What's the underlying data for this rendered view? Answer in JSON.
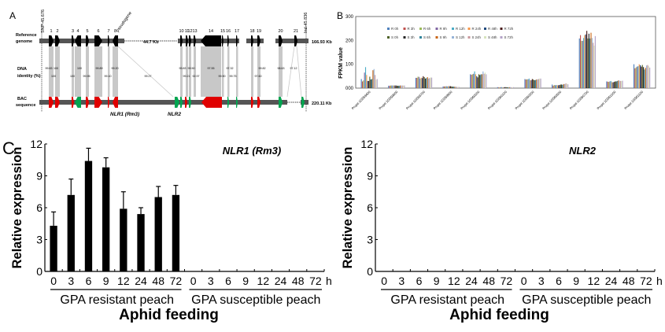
{
  "panel_a": {
    "label": "A",
    "reference_label": [
      "Reference",
      "genome"
    ],
    "identity_label": [
      "DNA",
      "identity (%)"
    ],
    "bac_label": [
      "BAC",
      "sequence"
    ],
    "left_marker": "SNP-45.676",
    "right_marker": "Ind-45.836",
    "pseudogene_label": "pseudogene",
    "gap_label": "44.7 Kb",
    "ref_length": "166.93 Kb",
    "bac_length": "220.11 Kb",
    "nlr1_label": "NLR1 (Rm3)",
    "nlr2_label": "NLR2",
    "gene_numbers": [
      "1",
      "2",
      "3",
      "4",
      "5",
      "6",
      "7",
      "8",
      "10",
      "11",
      "12",
      "13",
      "14",
      "15",
      "16",
      "17",
      "18",
      "19",
      "20",
      "21"
    ],
    "identity_top": [
      "99.83",
      "100",
      "100",
      "99.89",
      "99.20",
      "99.83",
      "99.50",
      "97.55",
      "97.32",
      "99.82",
      "98.63",
      "97.12"
    ],
    "identity_bottom": [
      "100",
      "100",
      "99.95",
      "99.10",
      "99.27",
      "99.21",
      "92.97",
      "99.90",
      "99.75",
      "97.60"
    ],
    "colors": {
      "match": "#e00000",
      "inverse": "#00a550",
      "ref": "#000000",
      "backbone": "#555555",
      "link": "#c8c8c8"
    }
  },
  "chart_data": [
    {
      "id": "B",
      "type": "bar",
      "title": "",
      "panel_label": "B",
      "ylabel": "FPKM value",
      "xlabel": "",
      "ylim": [
        0,
        300
      ],
      "yticks": [
        "000",
        "100",
        "200",
        "300"
      ],
      "legend_position": "top-left",
      "grid": false,
      "categories": [
        "Prupe.1G559400",
        "Prupe.1G559600",
        "Prupe.1G559700",
        "Prupe.1G559900",
        "Prupe.1G560000",
        "Prupe.1G560100",
        "Prupe.1G560300",
        "Prupe.1G560600",
        "Prupe.1G560700",
        "Prupe.1G561000",
        "Prupe.1G561100"
      ],
      "series": [
        {
          "name": "R 0h",
          "color": "#4f81bd",
          "values": [
            38,
            10,
            43,
            7,
            58,
            4,
            38,
            15,
            208,
            28,
            100
          ]
        },
        {
          "name": "R 3h",
          "color": "#c0504d",
          "values": [
            28,
            10,
            43,
            7,
            56,
            3,
            36,
            10,
            222,
            27,
            83
          ]
        },
        {
          "name": "R 6h",
          "color": "#9bbb59",
          "values": [
            32,
            11,
            48,
            7,
            58,
            3,
            37,
            13,
            198,
            26,
            87
          ]
        },
        {
          "name": "R 9h",
          "color": "#8064a2",
          "values": [
            65,
            11,
            47,
            8,
            60,
            4,
            37,
            12,
            198,
            28,
            90
          ]
        },
        {
          "name": "R 12h",
          "color": "#4bacc6",
          "values": [
            88,
            11,
            40,
            7,
            70,
            4,
            40,
            13,
            210,
            30,
            92
          ]
        },
        {
          "name": "R 24h",
          "color": "#f79646",
          "values": [
            55,
            11,
            44,
            8,
            58,
            3,
            33,
            12,
            222,
            25,
            100
          ]
        },
        {
          "name": "R 48h",
          "color": "#1f497d",
          "values": [
            30,
            11,
            42,
            8,
            50,
            3,
            33,
            12,
            225,
            24,
            96
          ]
        },
        {
          "name": "R 72h",
          "color": "#4a1b1b",
          "values": [
            30,
            11,
            50,
            8,
            45,
            4,
            38,
            13,
            240,
            26,
            90
          ]
        },
        {
          "name": "S 0h",
          "color": "#4f6228",
          "values": [
            48,
            10,
            46,
            7,
            58,
            4,
            36,
            15,
            208,
            28,
            97
          ]
        },
        {
          "name": "S 3h",
          "color": "#262626",
          "values": [
            36,
            10,
            40,
            6,
            55,
            3,
            33,
            15,
            228,
            28,
            88
          ]
        },
        {
          "name": "S 6h",
          "color": "#31859c",
          "values": [
            38,
            10,
            42,
            6,
            58,
            3,
            34,
            14,
            208,
            30,
            78
          ]
        },
        {
          "name": "S 9h",
          "color": "#c86414",
          "values": [
            75,
            11,
            46,
            6,
            58,
            4,
            36,
            17,
            232,
            32,
            85
          ]
        },
        {
          "name": "S 12h",
          "color": "#95b3d7",
          "values": [
            80,
            11,
            40,
            6,
            70,
            4,
            37,
            17,
            210,
            32,
            95
          ]
        },
        {
          "name": "S 24h",
          "color": "#c9979b",
          "values": [
            55,
            11,
            42,
            5,
            60,
            3,
            38,
            20,
            190,
            30,
            97
          ]
        },
        {
          "name": "S 48h",
          "color": "#d7e4bd",
          "values": [
            35,
            11,
            45,
            5,
            65,
            3,
            40,
            18,
            178,
            30,
            93
          ]
        },
        {
          "name": "S 72h",
          "color": "#b3a2c7",
          "values": [
            38,
            11,
            44,
            5,
            58,
            4,
            40,
            16,
            218,
            31,
            86
          ]
        }
      ]
    },
    {
      "id": "C-NLR1",
      "type": "bar",
      "panel_label": "C",
      "title": "NLR1 (Rm3)",
      "ylabel": "Relative expression",
      "xlabel": "Aphid feeding",
      "ylim": [
        0,
        12
      ],
      "yticks": [
        "0",
        "3",
        "6",
        "9",
        "12"
      ],
      "categories": [
        "0",
        "3",
        "6",
        "9",
        "12",
        "24",
        "48",
        "72",
        "0",
        "3",
        "6",
        "9",
        "12",
        "24",
        "48",
        "72"
      ],
      "x_unit": "h",
      "groups": [
        "GPA resistant peach",
        "GPA susceptible peach"
      ],
      "values": [
        4.3,
        7.2,
        10.4,
        9.8,
        5.9,
        5.4,
        7.0,
        7.2,
        0,
        0,
        0,
        0,
        0,
        0,
        0,
        0
      ],
      "errors": [
        1.3,
        1.5,
        1.2,
        0.9,
        1.6,
        0.6,
        1.0,
        0.9,
        0,
        0,
        0,
        0,
        0,
        0,
        0,
        0
      ],
      "grid": false
    },
    {
      "id": "C-NLR2",
      "type": "bar",
      "panel_label": "",
      "title": "NLR2",
      "ylabel": "Relative expression",
      "xlabel": "Aphid feeding",
      "ylim": [
        0,
        12
      ],
      "yticks": [
        "0",
        "3",
        "6",
        "9",
        "12"
      ],
      "categories": [
        "0",
        "3",
        "6",
        "9",
        "12",
        "24",
        "48",
        "72",
        "0",
        "3",
        "6",
        "9",
        "12",
        "24",
        "48",
        "72"
      ],
      "x_unit": "h",
      "groups": [
        "GPA resistant peach",
        "GPA susceptible peach"
      ],
      "values": [
        0,
        0,
        0,
        0,
        0,
        0,
        0,
        0,
        0,
        0,
        0,
        0,
        0,
        0,
        0,
        0
      ],
      "errors": [
        0,
        0,
        0,
        0,
        0,
        0,
        0,
        0,
        0,
        0,
        0,
        0,
        0,
        0,
        0,
        0
      ],
      "grid": false
    }
  ]
}
